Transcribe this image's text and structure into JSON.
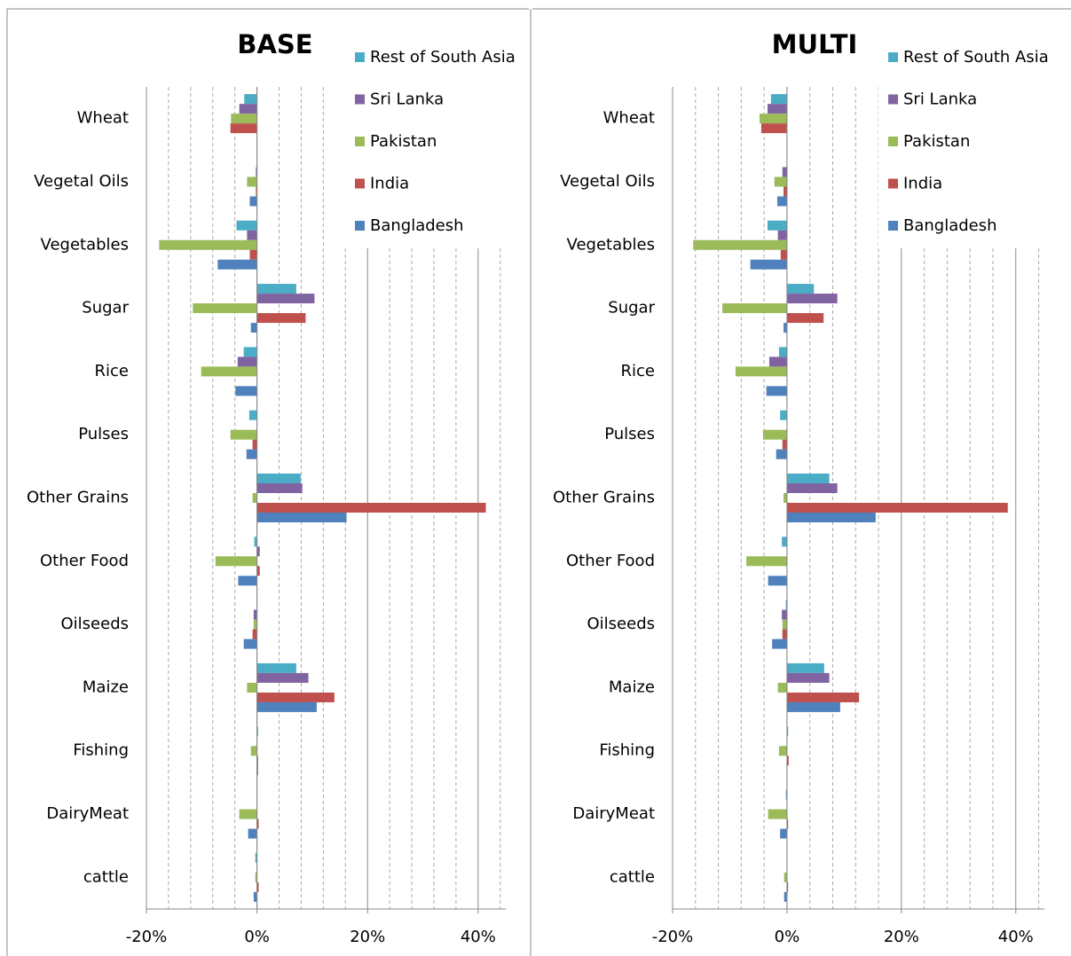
{
  "chart_data": [
    {
      "type": "bar",
      "orientation": "horizontal",
      "title": "BASE",
      "categories": [
        "Wheat",
        "Vegetal Oils",
        "Vegetables",
        "Sugar",
        "Rice",
        "Pulses",
        "Other Grains",
        "Other Food",
        "Oilseeds",
        "Maize",
        "Fishing",
        "DairyMeat",
        "cattle"
      ],
      "series": [
        {
          "name": "Rest of South Asia",
          "color": "#4bacc6",
          "values": [
            -2.3,
            0,
            -3.7,
            7.1,
            -2.4,
            -1.4,
            7.9,
            -0.5,
            0,
            7.1,
            0.2,
            0,
            -0.3
          ]
        },
        {
          "name": "Sri Lanka",
          "color": "#8064a2",
          "values": [
            -3.2,
            -0.2,
            -1.8,
            10.4,
            -3.5,
            0,
            8.2,
            0.5,
            -0.6,
            9.3,
            0,
            0,
            0
          ]
        },
        {
          "name": "Pakistan",
          "color": "#9bbb59",
          "values": [
            -4.7,
            -1.8,
            -17.7,
            -11.6,
            -10.1,
            -4.8,
            -0.8,
            -7.5,
            -0.6,
            -1.8,
            -1.1,
            -3.2,
            -0.3
          ]
        },
        {
          "name": "India",
          "color": "#c0504d",
          "values": [
            -4.8,
            -0.2,
            -1.3,
            8.8,
            0,
            -0.8,
            41.4,
            0.5,
            -0.8,
            14.0,
            0.2,
            0.3,
            0.3
          ]
        },
        {
          "name": "Bangladesh",
          "color": "#4f81bd",
          "values": [
            0,
            -1.3,
            -7.1,
            -1.1,
            -3.9,
            -1.9,
            16.2,
            -3.4,
            -2.4,
            10.8,
            0.2,
            -1.6,
            -0.6
          ]
        }
      ],
      "xlim": [
        -20,
        45
      ],
      "xticks": [
        {
          "value": -20,
          "label": "-20%"
        },
        {
          "value": 0,
          "label": "0%"
        },
        {
          "value": 20,
          "label": "20%"
        },
        {
          "value": 40,
          "label": "40%"
        }
      ],
      "minor_xticks": [
        -16,
        -12,
        -8,
        -4,
        4,
        8,
        12,
        16,
        24,
        28,
        32,
        36,
        44
      ],
      "grid": true
    },
    {
      "type": "bar",
      "orientation": "horizontal",
      "title": "MULTI",
      "categories": [
        "Wheat",
        "Vegetal Oils",
        "Vegetables",
        "Sugar",
        "Rice",
        "Pulses",
        "Other Grains",
        "Other Food",
        "Oilseeds",
        "Maize",
        "Fishing",
        "DairyMeat",
        "cattle"
      ],
      "series": [
        {
          "name": "Rest of South Asia",
          "color": "#4bacc6",
          "values": [
            -2.8,
            0,
            -3.4,
            4.7,
            -1.4,
            -1.2,
            7.4,
            -0.9,
            -0.2,
            6.5,
            0.2,
            -0.2,
            0
          ]
        },
        {
          "name": "Sri Lanka",
          "color": "#8064a2",
          "values": [
            -3.4,
            -0.8,
            -1.6,
            8.8,
            -3.1,
            0,
            8.8,
            0,
            -0.9,
            7.4,
            0,
            0,
            0
          ]
        },
        {
          "name": "Pakistan",
          "color": "#9bbb59",
          "values": [
            -4.8,
            -2.2,
            -16.4,
            -11.3,
            -9.0,
            -4.2,
            -0.6,
            -7.1,
            -0.8,
            -1.6,
            -1.4,
            -3.3,
            -0.5
          ]
        },
        {
          "name": "India",
          "color": "#c0504d",
          "values": [
            -4.5,
            -0.6,
            -1.1,
            6.4,
            0,
            -0.8,
            38.6,
            0,
            -0.8,
            12.6,
            0.3,
            0.2,
            0.2
          ]
        },
        {
          "name": "Bangladesh",
          "color": "#4f81bd",
          "values": [
            0,
            -1.7,
            -6.4,
            -0.6,
            -3.6,
            -1.9,
            15.5,
            -3.3,
            -2.6,
            9.3,
            0,
            -1.2,
            -0.5
          ]
        }
      ],
      "xlim": [
        -20,
        45
      ],
      "xticks": [
        {
          "value": -20,
          "label": "-20%"
        },
        {
          "value": 0,
          "label": "0%"
        },
        {
          "value": 20,
          "label": "20%"
        },
        {
          "value": 40,
          "label": "40%"
        }
      ],
      "minor_xticks": [
        -16,
        -12,
        -8,
        -4,
        4,
        8,
        12,
        16,
        24,
        28,
        32,
        36,
        44
      ],
      "grid": true
    }
  ]
}
